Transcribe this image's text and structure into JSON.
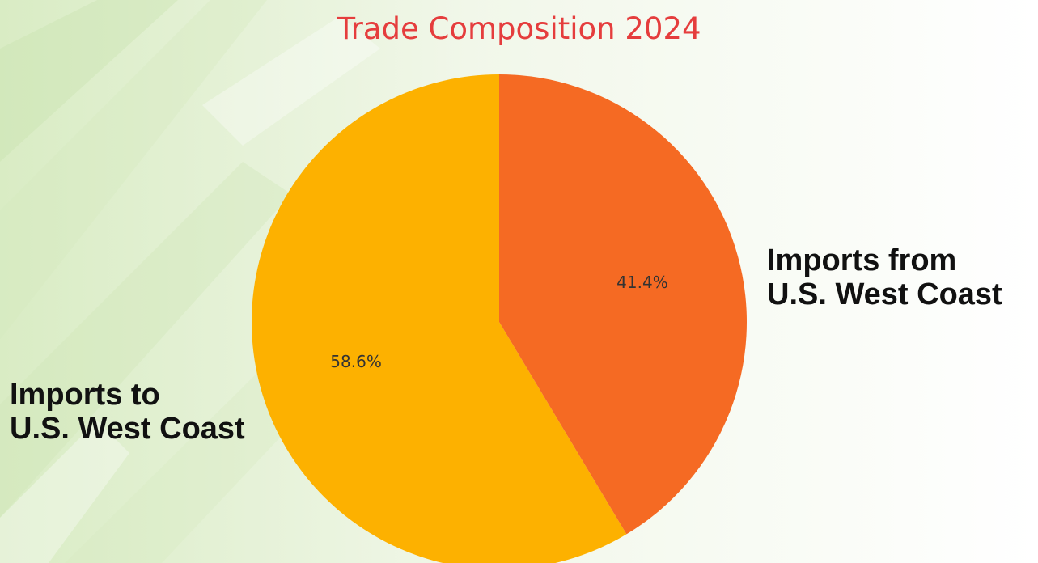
{
  "colors": {
    "title": "#e53d3d",
    "slice_imports_to": "#fdb100",
    "slice_imports_from": "#f56a23",
    "pct_text": "#333333"
  },
  "chart_data": {
    "type": "pie",
    "title": "Trade Composition 2024",
    "slices": [
      {
        "label_lines": [
          "Imports to",
          "U.S. West Coast"
        ],
        "value": 58.6,
        "pct_label": "58.6%",
        "color": "#fdb100"
      },
      {
        "label_lines": [
          "Imports from",
          "U.S. West Coast"
        ],
        "value": 41.4,
        "pct_label": "41.4%",
        "color": "#f56a23"
      }
    ],
    "start_angle": "top, first slice counter-clockwise",
    "legend": "none"
  }
}
